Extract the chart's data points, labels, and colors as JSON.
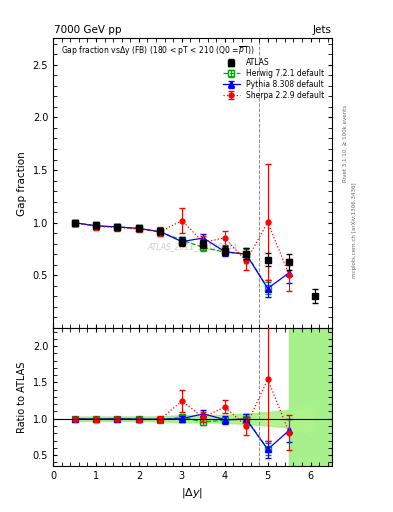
{
  "title_top_left": "7000 GeV pp",
  "title_top_right": "Jets",
  "watermark": "ATLAS_2011_S9126244",
  "right_label1": "Rivet 3.1.10, ≥ 100k events",
  "right_label2": "mcplots.cern.ch [arXiv:1306.3436]",
  "xlabel": "|\\Delta y|",
  "ylabel_main": "Gap fraction",
  "ylabel_ratio": "Ratio to ATLAS",
  "xlim": [
    0,
    6.5
  ],
  "ylim_main": [
    0.0,
    2.75
  ],
  "ylim_ratio": [
    0.35,
    2.25
  ],
  "x_pts": [
    0.5,
    1.0,
    1.5,
    2.0,
    2.5,
    3.0,
    3.5,
    4.0,
    4.5,
    5.0,
    5.5,
    6.1
  ],
  "atlas_y": [
    1.0,
    0.975,
    0.96,
    0.95,
    0.92,
    0.82,
    0.8,
    0.735,
    0.705,
    0.65,
    0.625,
    0.305
  ],
  "atlas_ye": [
    0.03,
    0.03,
    0.03,
    0.03,
    0.03,
    0.04,
    0.04,
    0.04,
    0.05,
    0.06,
    0.075,
    0.065
  ],
  "herwig_y": [
    1.0,
    0.97,
    0.96,
    0.945,
    0.91,
    0.835,
    0.765,
    0.72,
    0.705,
    0.38,
    null,
    null
  ],
  "herwig_ye": [
    0.02,
    0.02,
    0.02,
    0.02,
    0.025,
    0.03,
    0.03,
    0.03,
    0.045,
    0.055,
    null,
    null
  ],
  "pythia_y": [
    1.0,
    0.97,
    0.96,
    0.945,
    0.915,
    0.82,
    0.855,
    0.725,
    0.7,
    0.375,
    0.525,
    null
  ],
  "pythia_ye": [
    0.02,
    0.02,
    0.02,
    0.02,
    0.025,
    0.035,
    0.04,
    0.04,
    0.055,
    0.08,
    0.1,
    null
  ],
  "sherpa_y": [
    1.0,
    0.965,
    0.955,
    0.94,
    0.915,
    1.02,
    0.815,
    0.855,
    0.635,
    1.005,
    0.505,
    null
  ],
  "sherpa_ye": [
    0.03,
    0.03,
    0.03,
    0.03,
    0.04,
    0.12,
    0.055,
    0.065,
    0.085,
    0.55,
    0.15,
    null
  ],
  "atlas_color": "#000000",
  "herwig_color": "#00aa00",
  "pythia_color": "#0000ff",
  "sherpa_color": "#ff0000",
  "yticks_main": [
    0.5,
    1.0,
    1.5,
    2.0,
    2.5
  ],
  "yticks_ratio": [
    0.5,
    1.0,
    1.5,
    2.0
  ]
}
